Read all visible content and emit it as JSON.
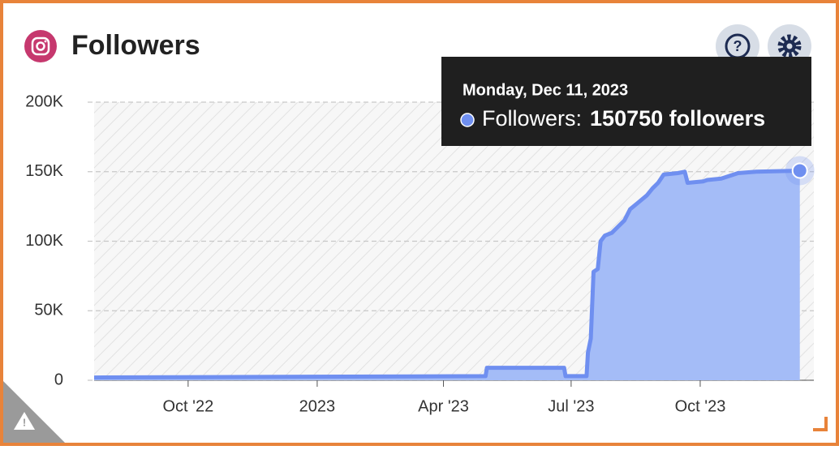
{
  "title": "Followers",
  "chart_data": {
    "type": "area",
    "x": [
      "2022-07-26",
      "2023-05-01",
      "2023-05-02",
      "2023-06-26",
      "2023-06-27",
      "2023-07-12",
      "2023-07-13",
      "2023-07-15",
      "2023-07-17",
      "2023-07-20",
      "2023-07-22",
      "2023-07-25",
      "2023-07-30",
      "2023-08-03",
      "2023-08-08",
      "2023-08-12",
      "2023-08-18",
      "2023-08-24",
      "2023-08-28",
      "2023-09-01",
      "2023-09-05",
      "2023-09-15",
      "2023-09-20",
      "2023-09-22",
      "2023-10-03",
      "2023-10-06",
      "2023-10-16",
      "2023-10-22",
      "2023-10-28",
      "2023-11-10",
      "2023-12-11"
    ],
    "series": [
      {
        "name": "Followers",
        "color": "#6f8ff0",
        "values": [
          2000,
          3000,
          9000,
          9000,
          3000,
          3000,
          20000,
          30000,
          78000,
          80000,
          100000,
          104000,
          106000,
          110000,
          115000,
          123000,
          128000,
          133000,
          138000,
          142000,
          148000,
          149000,
          150000,
          142000,
          143000,
          144000,
          145000,
          147000,
          149000,
          150000,
          150750
        ]
      }
    ],
    "fill_color": "#a4bcf7",
    "xlim": [
      "2022-07-26",
      "2023-12-21"
    ],
    "xticks": [
      {
        "value": "2022-10-01",
        "label": "Oct '22"
      },
      {
        "value": "2023-01-01",
        "label": "2023"
      },
      {
        "value": "2023-04-01",
        "label": "Apr '23"
      },
      {
        "value": "2023-07-01",
        "label": "Jul '23"
      },
      {
        "value": "2023-10-01",
        "label": "Oct '23"
      }
    ],
    "ylim": [
      0,
      200000
    ],
    "yticks": [
      0,
      {
        "value": 50000,
        "label": "50K"
      },
      {
        "value": 100000,
        "label": "100K"
      },
      {
        "value": 150000,
        "label": "150K"
      },
      {
        "value": 200000,
        "label": "200K"
      }
    ],
    "grid": true
  },
  "tooltip": {
    "date": "Monday, Dec 11, 2023",
    "label": "Followers:",
    "value_text": "150750 followers"
  }
}
